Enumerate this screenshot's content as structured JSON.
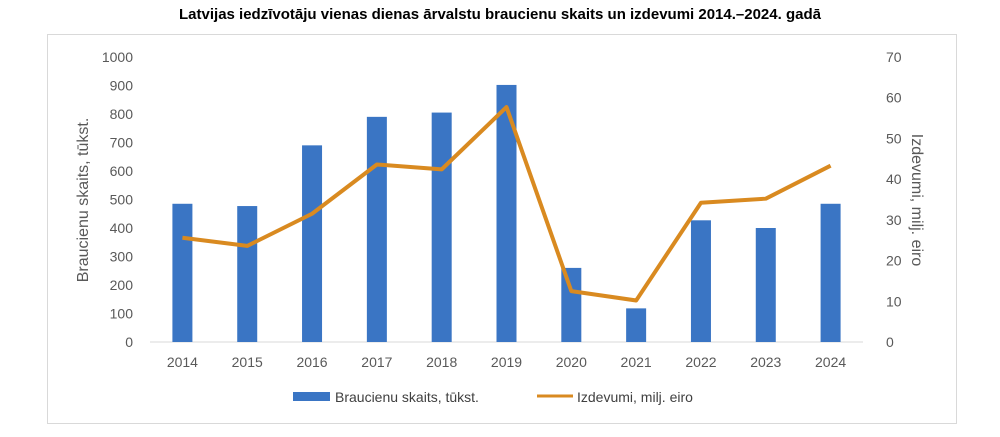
{
  "title": "Latvijas iedzīvotāju vienas dienas ārvalstu braucienu skaits un izdevumi 2014.–2024. gadā",
  "colors": {
    "bars": "#3a75c4",
    "line": "#d98a20",
    "grid": "#d9d9d9",
    "axis_text": "#595959"
  },
  "chart_data": {
    "type": "bar",
    "categories": [
      "2014",
      "2015",
      "2016",
      "2017",
      "2018",
      "2019",
      "2020",
      "2021",
      "2022",
      "2023",
      "2024"
    ],
    "series": [
      {
        "name": "Braucienu skaits, tūkst.",
        "type": "bar",
        "axis": "left",
        "values": [
          485,
          477,
          690,
          790,
          805,
          902,
          260,
          118,
          427,
          400,
          485
        ]
      },
      {
        "name": "Izdevumi, milj. eiro",
        "type": "line",
        "axis": "right",
        "values": [
          25.6,
          23.6,
          31.5,
          43.6,
          42.4,
          57.7,
          12.5,
          10.2,
          34.2,
          35.2,
          43.3
        ]
      }
    ],
    "ylabel": "Braucienu skaits, tūkst.",
    "y2label": "Izdevumi, milj. eiro",
    "ylim": [
      0,
      1000
    ],
    "y2lim": [
      0,
      70
    ],
    "yticks": [
      "0",
      "100",
      "200",
      "300",
      "400",
      "500",
      "600",
      "700",
      "800",
      "900",
      "1000"
    ],
    "y2ticks": [
      "0",
      "10",
      "20",
      "30",
      "40",
      "50",
      "60",
      "70"
    ],
    "grid": false,
    "legend_position": "bottom"
  }
}
